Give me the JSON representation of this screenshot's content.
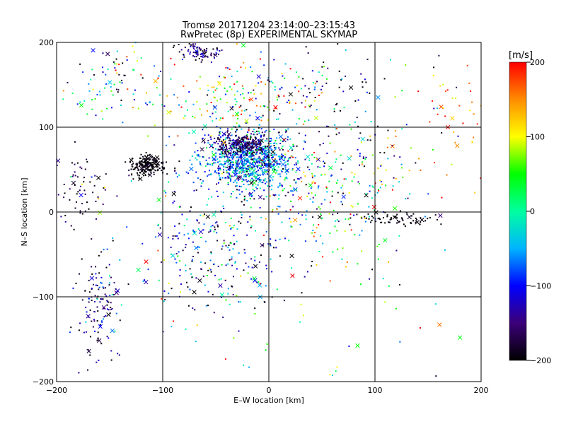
{
  "chart_data": {
    "type": "scatter",
    "title": "Tromsø 20171204 23:14:00–23:15:43",
    "subtitle": "RwPretec (8p) EXPERIMENTAL SKYMAP",
    "xlabel": "E–W location [km]",
    "ylabel": "N–S location [km]",
    "xlim": [
      -200,
      200
    ],
    "ylim": [
      -200,
      200
    ],
    "xticks": [
      -200,
      -100,
      0,
      100,
      200
    ],
    "yticks": [
      -200,
      -100,
      0,
      100,
      200
    ],
    "xtick_labels": [
      "−200",
      "−100",
      "0",
      "100",
      "200"
    ],
    "ytick_labels": [
      "−200",
      "−100",
      "0",
      "100",
      "200"
    ],
    "grid": true,
    "colorbar": {
      "label": "[m/s]",
      "range": [
        -200,
        200
      ],
      "ticks": [
        200,
        100,
        0,
        -100,
        -200
      ],
      "tick_labels": [
        "200",
        "100",
        "0",
        "−100",
        "−200"
      ],
      "colormap": [
        "#000000",
        "#3c0078",
        "#0000ff",
        "#00b4ff",
        "#00ffa0",
        "#00ff00",
        "#ffff00",
        "#ff8c00",
        "#ff0000"
      ]
    },
    "clusters": [
      {
        "x": -20,
        "y": 60,
        "sx": 22,
        "sy": 16,
        "n": 900,
        "v": -70,
        "vs": 60
      },
      {
        "x": -25,
        "y": 80,
        "sx": 14,
        "sy": 8,
        "n": 260,
        "v": -160,
        "vs": 30
      },
      {
        "x": -115,
        "y": 55,
        "sx": 8,
        "sy": 6,
        "n": 200,
        "v": -195,
        "vs": 10
      },
      {
        "x": -65,
        "y": 190,
        "sx": 10,
        "sy": 6,
        "n": 90,
        "v": -160,
        "vs": 40
      },
      {
        "x": -50,
        "y": -40,
        "sx": 35,
        "sy": 40,
        "n": 260,
        "v": -100,
        "vs": 80
      },
      {
        "x": -160,
        "y": -110,
        "sx": 10,
        "sy": 28,
        "n": 130,
        "v": -150,
        "vs": 60
      },
      {
        "x": 50,
        "y": 20,
        "sx": 40,
        "sy": 35,
        "n": 240,
        "v": 0,
        "vs": 110
      },
      {
        "x": -150,
        "y": 160,
        "sx": 25,
        "sy": 25,
        "n": 90,
        "v": -30,
        "vs": 110
      },
      {
        "x": 120,
        "y": -8,
        "sx": 20,
        "sy": 4,
        "n": 70,
        "v": -195,
        "vs": 8
      },
      {
        "x": 170,
        "y": 110,
        "sx": 25,
        "sy": 40,
        "n": 50,
        "v": 160,
        "vs": 40
      },
      {
        "x": -30,
        "y": 130,
        "sx": 35,
        "sy": 20,
        "n": 180,
        "v": 40,
        "vs": 120
      },
      {
        "x": 60,
        "y": 130,
        "sx": 40,
        "sy": 40,
        "n": 100,
        "v": -150,
        "vs": 70
      },
      {
        "x": -180,
        "y": 30,
        "sx": 15,
        "sy": 20,
        "n": 60,
        "v": -180,
        "vs": 30
      },
      {
        "x": 0,
        "y": 0,
        "sx": 140,
        "sy": 140,
        "n": 260,
        "v": 0,
        "vs": 130
      }
    ]
  }
}
